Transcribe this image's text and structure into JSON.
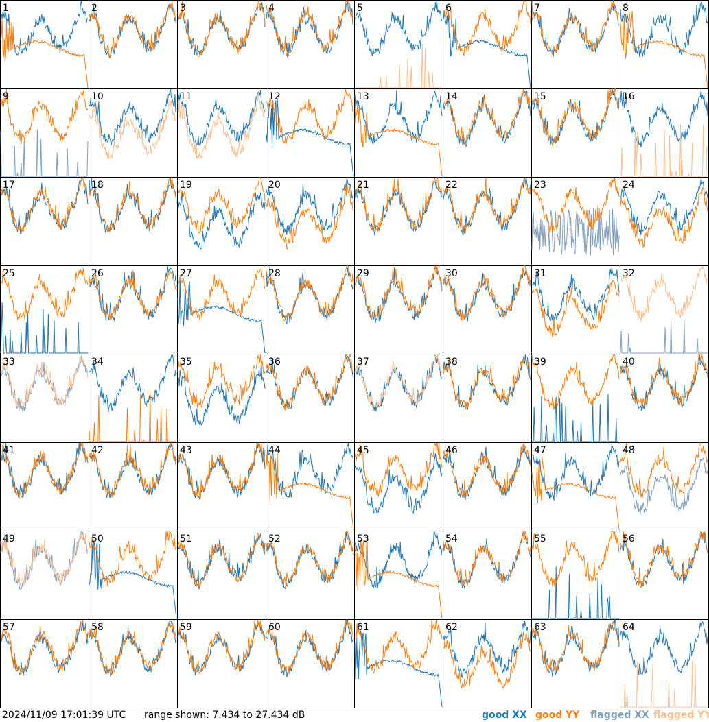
{
  "footer": {
    "timestamp": "2024/11/09 17:01:39 UTC",
    "range_text": "range shown: 7.434 to 27.434 dB"
  },
  "legend": [
    {
      "label": "good XX",
      "color": "#1f77b4"
    },
    {
      "label": "good YY",
      "color": "#ff7f0e"
    },
    {
      "label": "flagged XX",
      "color": "#7f9fbf"
    },
    {
      "label": "flagged YY",
      "color": "#ffbf8f"
    }
  ],
  "chart_data": {
    "type": "line",
    "ylim": [
      7.434,
      27.434
    ],
    "grid": {
      "rows": 8,
      "cols": 8
    },
    "panels": [
      {
        "id": "1",
        "xx": "good",
        "yy": "good",
        "xx_profile": "normal",
        "yy_profile": "rolloff"
      },
      {
        "id": "2",
        "xx": "good",
        "yy": "good",
        "xx_profile": "normal",
        "yy_profile": "normal"
      },
      {
        "id": "3",
        "xx": "good",
        "yy": "good",
        "xx_profile": "normal",
        "yy_profile": "normal"
      },
      {
        "id": "4",
        "xx": "good",
        "yy": "good",
        "xx_profile": "normal",
        "yy_profile": "normal"
      },
      {
        "id": "5",
        "xx": "good",
        "yy": "flagged",
        "xx_profile": "normal",
        "yy_profile": "spikes"
      },
      {
        "id": "6",
        "xx": "good",
        "yy": "good",
        "xx_profile": "rolloff",
        "yy_profile": "normal"
      },
      {
        "id": "7",
        "xx": "good",
        "yy": "good",
        "xx_profile": "normal",
        "yy_profile": "normal"
      },
      {
        "id": "8",
        "xx": "good",
        "yy": "good",
        "xx_profile": "normal",
        "yy_profile": "rolloff"
      },
      {
        "id": "9",
        "xx": "flagged",
        "yy": "good",
        "xx_profile": "spikes",
        "yy_profile": "normal"
      },
      {
        "id": "10",
        "xx": "good",
        "yy": "flagged",
        "xx_profile": "normal",
        "yy_profile": "low"
      },
      {
        "id": "11",
        "xx": "good",
        "yy": "flagged",
        "xx_profile": "normal",
        "yy_profile": "low"
      },
      {
        "id": "12",
        "xx": "good",
        "yy": "good",
        "xx_profile": "rolloff",
        "yy_profile": "normal"
      },
      {
        "id": "13",
        "xx": "good",
        "yy": "good",
        "xx_profile": "normal",
        "yy_profile": "rolloff"
      },
      {
        "id": "14",
        "xx": "good",
        "yy": "good",
        "xx_profile": "normal",
        "yy_profile": "normal"
      },
      {
        "id": "15",
        "xx": "good",
        "yy": "good",
        "xx_profile": "normal",
        "yy_profile": "normal"
      },
      {
        "id": "16",
        "xx": "good",
        "yy": "flagged",
        "xx_profile": "normal",
        "yy_profile": "spikes"
      },
      {
        "id": "17",
        "xx": "good",
        "yy": "good",
        "xx_profile": "normal",
        "yy_profile": "normal"
      },
      {
        "id": "18",
        "xx": "good",
        "yy": "good",
        "xx_profile": "normal",
        "yy_profile": "normal"
      },
      {
        "id": "19",
        "xx": "good",
        "yy": "good",
        "xx_profile": "low",
        "yy_profile": "normal"
      },
      {
        "id": "20",
        "xx": "good",
        "yy": "good",
        "xx_profile": "normal",
        "yy_profile": "low"
      },
      {
        "id": "21",
        "xx": "good",
        "yy": "good",
        "xx_profile": "normal",
        "yy_profile": "normal"
      },
      {
        "id": "22",
        "xx": "good",
        "yy": "good",
        "xx_profile": "normal",
        "yy_profile": "normal"
      },
      {
        "id": "23",
        "xx": "flagged",
        "yy": "good",
        "xx_profile": "noisy",
        "yy_profile": "normal"
      },
      {
        "id": "24",
        "xx": "good",
        "yy": "good",
        "xx_profile": "normal",
        "yy_profile": "low"
      },
      {
        "id": "25",
        "xx": "good",
        "yy": "good",
        "xx_profile": "spikes",
        "yy_profile": "normal"
      },
      {
        "id": "26",
        "xx": "good",
        "yy": "good",
        "xx_profile": "normal",
        "yy_profile": "normal"
      },
      {
        "id": "27",
        "xx": "good",
        "yy": "good",
        "xx_profile": "rolloff",
        "yy_profile": "normal"
      },
      {
        "id": "28",
        "xx": "good",
        "yy": "good",
        "xx_profile": "normal",
        "yy_profile": "normal"
      },
      {
        "id": "29",
        "xx": "good",
        "yy": "good",
        "xx_profile": "normal",
        "yy_profile": "normal"
      },
      {
        "id": "30",
        "xx": "good",
        "yy": "good",
        "xx_profile": "normal",
        "yy_profile": "normal"
      },
      {
        "id": "31",
        "xx": "good",
        "yy": "good",
        "xx_profile": "normal",
        "yy_profile": "low"
      },
      {
        "id": "32",
        "xx": "flagged",
        "yy": "flagged",
        "xx_profile": "spikes",
        "yy_profile": "normal"
      },
      {
        "id": "33",
        "xx": "flagged",
        "yy": "flagged",
        "xx_profile": "normal",
        "yy_profile": "normal"
      },
      {
        "id": "34",
        "xx": "good",
        "yy": "good",
        "xx_profile": "normal",
        "yy_profile": "spikes"
      },
      {
        "id": "35",
        "xx": "good",
        "yy": "good",
        "xx_profile": "low",
        "yy_profile": "normal"
      },
      {
        "id": "36",
        "xx": "good",
        "yy": "good",
        "xx_profile": "normal",
        "yy_profile": "normal"
      },
      {
        "id": "37",
        "xx": "good",
        "yy": "flagged",
        "xx_profile": "normal",
        "yy_profile": "normal"
      },
      {
        "id": "38",
        "xx": "good",
        "yy": "good",
        "xx_profile": "normal",
        "yy_profile": "normal"
      },
      {
        "id": "39",
        "xx": "good",
        "yy": "good",
        "xx_profile": "spikes",
        "yy_profile": "normal"
      },
      {
        "id": "40",
        "xx": "good",
        "yy": "good",
        "xx_profile": "normal",
        "yy_profile": "normal"
      },
      {
        "id": "41",
        "xx": "good",
        "yy": "good",
        "xx_profile": "normal",
        "yy_profile": "normal"
      },
      {
        "id": "42",
        "xx": "good",
        "yy": "good",
        "xx_profile": "normal",
        "yy_profile": "normal"
      },
      {
        "id": "43",
        "xx": "good",
        "yy": "good",
        "xx_profile": "normal",
        "yy_profile": "normal"
      },
      {
        "id": "44",
        "xx": "good",
        "yy": "good",
        "xx_profile": "normal",
        "yy_profile": "rolloff"
      },
      {
        "id": "45",
        "xx": "good",
        "yy": "good",
        "xx_profile": "low",
        "yy_profile": "normal"
      },
      {
        "id": "46",
        "xx": "good",
        "yy": "good",
        "xx_profile": "normal",
        "yy_profile": "normal"
      },
      {
        "id": "47",
        "xx": "good",
        "yy": "good",
        "xx_profile": "normal",
        "yy_profile": "rolloff"
      },
      {
        "id": "48",
        "xx": "flagged",
        "yy": "good",
        "xx_profile": "low",
        "yy_profile": "normal"
      },
      {
        "id": "49",
        "xx": "flagged",
        "yy": "flagged",
        "xx_profile": "normal",
        "yy_profile": "normal"
      },
      {
        "id": "50",
        "xx": "good",
        "yy": "good",
        "xx_profile": "rolloff",
        "yy_profile": "normal"
      },
      {
        "id": "51",
        "xx": "good",
        "yy": "good",
        "xx_profile": "normal",
        "yy_profile": "normal"
      },
      {
        "id": "52",
        "xx": "good",
        "yy": "good",
        "xx_profile": "normal",
        "yy_profile": "normal"
      },
      {
        "id": "53",
        "xx": "good",
        "yy": "good",
        "xx_profile": "normal",
        "yy_profile": "rolloff"
      },
      {
        "id": "54",
        "xx": "good",
        "yy": "good",
        "xx_profile": "normal",
        "yy_profile": "normal"
      },
      {
        "id": "55",
        "xx": "good",
        "yy": "good",
        "xx_profile": "spikes",
        "yy_profile": "normal"
      },
      {
        "id": "56",
        "xx": "good",
        "yy": "good",
        "xx_profile": "normal",
        "yy_profile": "normal"
      },
      {
        "id": "57",
        "xx": "good",
        "yy": "good",
        "xx_profile": "normal",
        "yy_profile": "normal"
      },
      {
        "id": "58",
        "xx": "good",
        "yy": "good",
        "xx_profile": "normal",
        "yy_profile": "normal"
      },
      {
        "id": "59",
        "xx": "good",
        "yy": "good",
        "xx_profile": "normal",
        "yy_profile": "normal"
      },
      {
        "id": "60",
        "xx": "good",
        "yy": "good",
        "xx_profile": "normal",
        "yy_profile": "normal"
      },
      {
        "id": "61",
        "xx": "good",
        "yy": "good",
        "xx_profile": "rolloff",
        "yy_profile": "normal"
      },
      {
        "id": "62",
        "xx": "good",
        "yy": "good",
        "xx_profile": "normal",
        "yy_profile": "low"
      },
      {
        "id": "63",
        "xx": "good",
        "yy": "good",
        "xx_profile": "normal",
        "yy_profile": "normal"
      },
      {
        "id": "64",
        "xx": "good",
        "yy": "flagged",
        "xx_profile": "normal",
        "yy_profile": "spikes"
      }
    ]
  }
}
